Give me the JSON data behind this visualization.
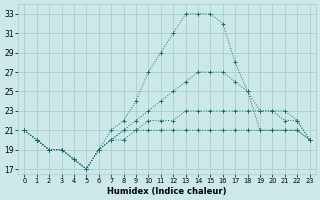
{
  "xlabel": "Humidex (Indice chaleur)",
  "bg_color": "#cce8e8",
  "grid_color": "#aacece",
  "line_color": "#1a6b6b",
  "xlim": [
    -0.5,
    23.5
  ],
  "ylim": [
    16.5,
    34.0
  ],
  "xticks": [
    0,
    1,
    2,
    3,
    4,
    5,
    6,
    7,
    8,
    9,
    10,
    11,
    12,
    13,
    14,
    15,
    16,
    17,
    18,
    19,
    20,
    21,
    22,
    23
  ],
  "yticks": [
    17,
    19,
    21,
    23,
    25,
    27,
    29,
    31,
    33
  ],
  "series": [
    {
      "x": [
        0,
        1,
        2,
        3,
        4,
        5,
        6,
        7,
        8,
        9,
        10,
        11,
        12,
        13,
        14,
        15,
        16,
        17,
        18,
        19,
        20,
        21,
        22,
        23
      ],
      "y": [
        21,
        20,
        19,
        19,
        18,
        17,
        19,
        21,
        22,
        24,
        27,
        29,
        31,
        33,
        33,
        33,
        32,
        28,
        25,
        21,
        21,
        21,
        21,
        20
      ]
    },
    {
      "x": [
        0,
        1,
        2,
        3,
        4,
        5,
        6,
        7,
        8,
        9,
        10,
        11,
        12,
        13,
        14,
        15,
        16,
        17,
        18,
        19,
        20,
        21,
        22,
        23
      ],
      "y": [
        21,
        20,
        19,
        19,
        18,
        17,
        19,
        20,
        21,
        22,
        23,
        24,
        25,
        26,
        27,
        27,
        27,
        26,
        25,
        23,
        23,
        22,
        22,
        20
      ]
    },
    {
      "x": [
        0,
        1,
        2,
        3,
        4,
        5,
        6,
        7,
        8,
        9,
        10,
        11,
        12,
        13,
        14,
        15,
        16,
        17,
        18,
        19,
        20,
        21,
        22,
        23
      ],
      "y": [
        21,
        20,
        19,
        19,
        18,
        17,
        19,
        20,
        21,
        21,
        22,
        22,
        22,
        23,
        23,
        23,
        23,
        23,
        23,
        23,
        23,
        23,
        22,
        20
      ]
    },
    {
      "x": [
        0,
        1,
        2,
        3,
        4,
        5,
        6,
        7,
        8,
        9,
        10,
        11,
        12,
        13,
        14,
        15,
        16,
        17,
        18,
        19,
        20,
        21,
        22,
        23
      ],
      "y": [
        21,
        20,
        19,
        19,
        18,
        17,
        19,
        20,
        20,
        21,
        21,
        21,
        21,
        21,
        21,
        21,
        21,
        21,
        21,
        21,
        21,
        21,
        21,
        20
      ]
    }
  ]
}
